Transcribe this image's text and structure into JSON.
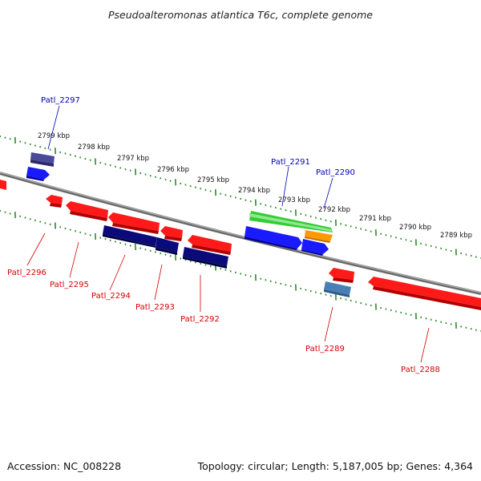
{
  "title": "Pseudoalteromonas atlantica T6c, complete genome",
  "footer": {
    "accession": "Accession: NC_008228",
    "summary": "Topology: circular; Length: 5,187,005 bp; Genes: 4,364"
  },
  "colors": {
    "backbone": "#7f7f7f",
    "ticks": "#2b8a2b",
    "forward_label": "#0000b0",
    "reverse_label": "#d40000",
    "red_gene": "#ff1a1a",
    "blue_gene": "#1a1aff",
    "navy_gene": "#0a0a7a",
    "green_gene": "#33cc33",
    "orange_gene": "#ff9900",
    "slate_gene": "#4a4a9a",
    "steel_gene": "#4a7fb5"
  },
  "scale_labels": [
    "2799 kbp",
    "2798 kbp",
    "2797 kbp",
    "2796 kbp",
    "2795 kbp",
    "2794 kbp",
    "2793 kbp",
    "2792 kbp",
    "2791 kbp",
    "2790 kbp",
    "2789 kbp"
  ],
  "gene_labels": {
    "top": [
      "Patl_2297",
      "Patl_2291",
      "Patl_2290"
    ],
    "bottom": [
      "Patl_2296",
      "Patl_2295",
      "Patl_2294",
      "Patl_2293",
      "Patl_2292",
      "Patl_2289",
      "Patl_2288"
    ]
  }
}
